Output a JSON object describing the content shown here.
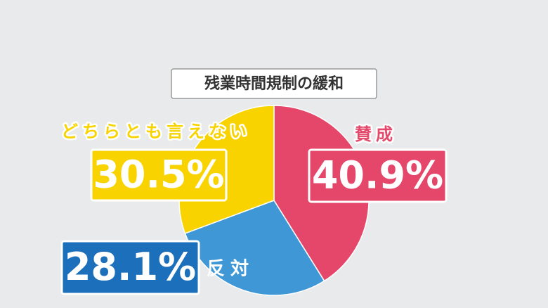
{
  "chart_data": {
    "type": "pie",
    "title": "残業時間規制の緩和",
    "categories": [
      "賛成",
      "反対",
      "どちらとも言えない"
    ],
    "values": [
      40.9,
      28.1,
      30.5
    ],
    "value_labels": [
      "40.9%",
      "28.1%",
      "30.5%"
    ],
    "colors": [
      "#e5476a",
      "#3f98d5",
      "#f8d300"
    ]
  }
}
